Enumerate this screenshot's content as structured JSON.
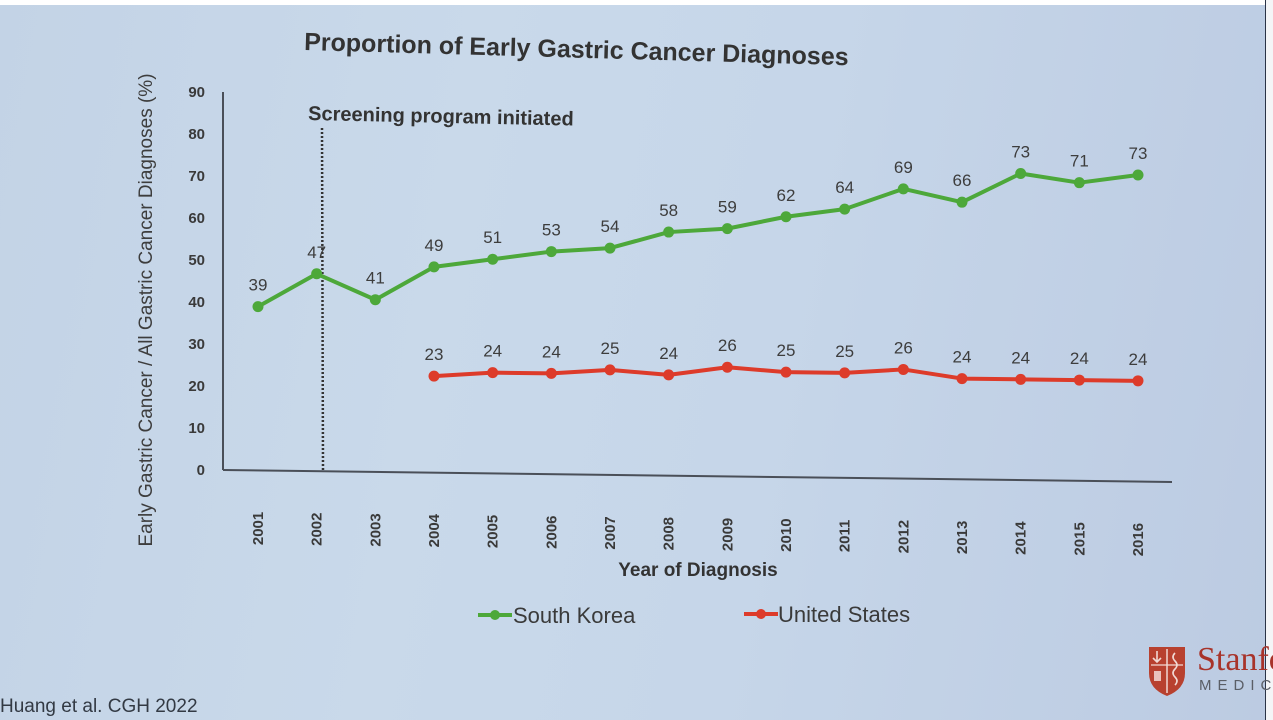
{
  "chart_data": {
    "type": "line",
    "title": "Proportion of Early Gastric Cancer Diagnoses",
    "xlabel": "Year of Diagnosis",
    "ylabel": "Early Gastric Cancer / All Gastric Cancer Diagnoses (%)",
    "ylim": [
      0,
      90
    ],
    "yticks": [
      "0",
      "10",
      "20",
      "30",
      "40",
      "50",
      "60",
      "70",
      "80",
      "90"
    ],
    "categories": [
      "2001",
      "2002",
      "2003",
      "2004",
      "2005",
      "2006",
      "2007",
      "2008",
      "2009",
      "2010",
      "2011",
      "2012",
      "2013",
      "2014",
      "2015",
      "2016"
    ],
    "grid": false,
    "legend_position": "bottom-center",
    "annotation": {
      "text": "Screening program initiated",
      "x": "2002",
      "style": "dotted vertical line"
    },
    "series": [
      {
        "name": "South Korea",
        "color": "#4da83a",
        "values": [
          39,
          47,
          41,
          49,
          51,
          53,
          54,
          58,
          59,
          62,
          64,
          69,
          66,
          73,
          71,
          73
        ]
      },
      {
        "name": "United States",
        "color": "#dd3b2a",
        "values": [
          null,
          null,
          null,
          23,
          24,
          24,
          25,
          24,
          26,
          25,
          25,
          26,
          24,
          24,
          24,
          24
        ]
      }
    ]
  },
  "footer": {
    "citation": "Huang et al. CGH 2022",
    "logo_name": "Stanford",
    "logo_sub": "MEDICINE"
  }
}
